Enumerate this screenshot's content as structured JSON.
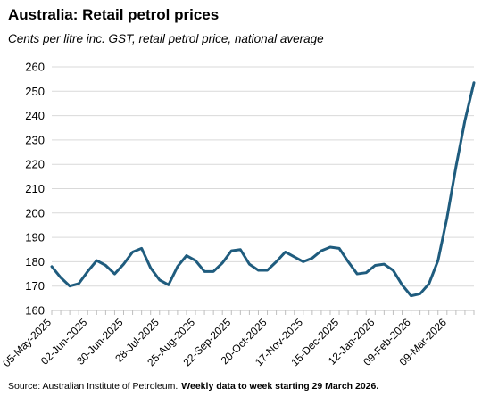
{
  "chart_data": {
    "type": "line",
    "title": "Australia: Retail petrol prices",
    "subtitle": "Cents per litre inc. GST, retail petrol price, national average",
    "source": "Source: Australian Institute of Petroleum.",
    "note": "Weekly data to week starting 29 March 2026.",
    "xlabel": "",
    "ylabel": "",
    "ylim": [
      160,
      260
    ],
    "yticks": [
      160,
      170,
      180,
      190,
      200,
      210,
      220,
      230,
      240,
      250,
      260
    ],
    "grid": "horizontal",
    "legend": "none",
    "line_color": "#1f5c7e",
    "x_tick_labels": [
      "05-May-2025",
      "02-Jun-2025",
      "30-Jun-2025",
      "28-Jul-2025",
      "25-Aug-2025",
      "22-Sep-2025",
      "20-Oct-2025",
      "17-Nov-2025",
      "15-Dec-2025",
      "12-Jan-2026",
      "09-Feb-2026",
      "09-Mar-2026"
    ],
    "x": [
      "2025-05-05",
      "2025-05-12",
      "2025-05-19",
      "2025-05-26",
      "2025-06-02",
      "2025-06-09",
      "2025-06-16",
      "2025-06-23",
      "2025-06-30",
      "2025-07-07",
      "2025-07-14",
      "2025-07-21",
      "2025-07-28",
      "2025-08-04",
      "2025-08-11",
      "2025-08-18",
      "2025-08-25",
      "2025-09-01",
      "2025-09-08",
      "2025-09-15",
      "2025-09-22",
      "2025-09-29",
      "2025-10-06",
      "2025-10-13",
      "2025-10-20",
      "2025-10-27",
      "2025-11-03",
      "2025-11-10",
      "2025-11-17",
      "2025-11-24",
      "2025-12-01",
      "2025-12-08",
      "2025-12-15",
      "2025-12-22",
      "2025-12-29",
      "2026-01-05",
      "2026-01-12",
      "2026-01-19",
      "2026-01-26",
      "2026-02-02",
      "2026-02-09",
      "2026-02-16",
      "2026-02-23",
      "2026-03-02",
      "2026-03-09",
      "2026-03-16",
      "2026-03-23",
      "2026-03-29"
    ],
    "series": [
      {
        "values": [
          178.0,
          173.5,
          170.0,
          171.0,
          176.0,
          180.5,
          178.5,
          175.0,
          179.0,
          184.0,
          185.5,
          177.5,
          172.5,
          170.5,
          178.0,
          182.5,
          180.5,
          176.0,
          176.0,
          179.5,
          184.5,
          185.0,
          179.0,
          176.5,
          176.5,
          180.0,
          184.0,
          182.0,
          180.0,
          181.5,
          184.5,
          186.0,
          185.5,
          180.0,
          175.0,
          175.5,
          178.5,
          179.0,
          176.5,
          170.5,
          166.0,
          166.8,
          171.0,
          180.5,
          198.0,
          219.0,
          238.0,
          253.5
        ]
      }
    ]
  }
}
